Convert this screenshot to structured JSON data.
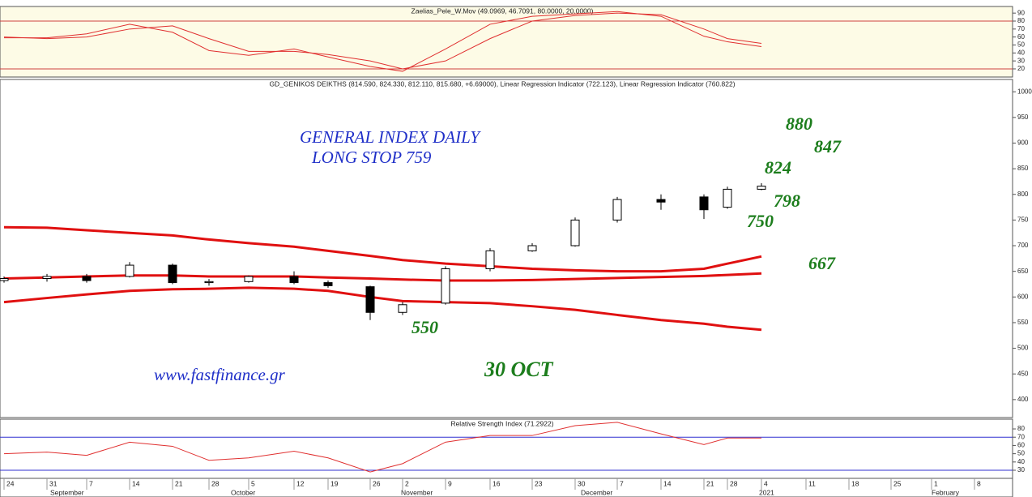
{
  "chart_data": [
    {
      "type": "line",
      "title": "Zaelias_Pele_W.Mov (49.0969, 46.7091, 80.0000, 20.0000)",
      "ylim": [
        9.8,
        98.3
      ],
      "yticks": [
        20,
        30,
        40,
        50,
        60,
        70,
        80,
        90
      ],
      "hlines": [
        80,
        20
      ],
      "background": "#fdfbe6",
      "series": [
        {
          "color": "#e03030",
          "values": [
            59,
            59,
            64,
            76,
            66,
            43,
            37,
            45,
            35,
            23,
            17,
            45,
            76,
            86,
            89,
            92,
            86,
            61,
            54,
            48,
            null,
            null,
            null,
            null,
            null
          ]
        },
        {
          "color": "#e03030",
          "values": [
            60,
            58,
            60,
            70,
            74,
            58,
            42,
            42,
            38,
            30,
            20,
            30,
            58,
            80,
            87,
            90,
            88,
            70,
            58,
            52,
            null,
            null,
            null,
            null,
            null
          ]
        }
      ]
    },
    {
      "type": "candlestick",
      "title": "GD_GENIKOS DEIKTHS (814.590, 824.330, 812.110, 815.680, +6.69000), Linear Regression Indicator (722.123), Linear Regression Indicator (760.822)",
      "categories": [
        "24",
        "31",
        "7",
        "14",
        "21",
        "28",
        "5",
        "12",
        "19",
        "26",
        "2",
        "9",
        "16",
        "23",
        "30",
        "7",
        "14",
        "21",
        "28",
        "4",
        "11",
        "18",
        "25",
        "1",
        "8"
      ],
      "months": [
        "September",
        "October",
        "November",
        "December",
        "2021",
        "February"
      ],
      "ylim": [
        365,
        1024
      ],
      "yticks": [
        400,
        450,
        500,
        550,
        600,
        650,
        700,
        750,
        800,
        850,
        900,
        950,
        1000
      ],
      "open": [
        632,
        636,
        640,
        640,
        662,
        628,
        630,
        640,
        628,
        620,
        570,
        588,
        655,
        690,
        700,
        750,
        790,
        795,
        775,
        810,
        null,
        null,
        null,
        null,
        null
      ],
      "high": [
        640,
        645,
        645,
        668,
        665,
        635,
        642,
        650,
        632,
        622,
        590,
        660,
        695,
        705,
        755,
        795,
        800,
        800,
        815,
        822,
        null,
        null,
        null,
        null,
        null
      ],
      "low": [
        628,
        630,
        628,
        638,
        625,
        622,
        628,
        625,
        618,
        555,
        565,
        585,
        650,
        688,
        698,
        745,
        770,
        752,
        772,
        808,
        null,
        null,
        null,
        null,
        null
      ],
      "close": [
        636,
        640,
        632,
        662,
        628,
        630,
        640,
        628,
        622,
        570,
        585,
        655,
        690,
        700,
        750,
        790,
        785,
        770,
        810,
        816,
        null,
        null,
        null,
        null,
        null
      ],
      "series": [
        {
          "color": "#e01010",
          "values": [
            736,
            735,
            730,
            725,
            720,
            712,
            705,
            698,
            690,
            680,
            672,
            665,
            660,
            655,
            652,
            650,
            650,
            655,
            665,
            679,
            null,
            null,
            null,
            null,
            null
          ]
        },
        {
          "color": "#e01010",
          "values": [
            636,
            638,
            640,
            642,
            642,
            640,
            640,
            640,
            638,
            636,
            634,
            632,
            632,
            633,
            635,
            637,
            639,
            641,
            643,
            646,
            null,
            null,
            null,
            null,
            null
          ]
        },
        {
          "color": "#e01010",
          "values": [
            590,
            598,
            605,
            612,
            615,
            616,
            618,
            616,
            612,
            600,
            592,
            590,
            588,
            582,
            575,
            565,
            555,
            548,
            542,
            536,
            null,
            null,
            null,
            null,
            null
          ]
        }
      ],
      "annotations": [
        "GENERAL INDEX DAILY",
        "LONG STOP 759",
        "880",
        "847",
        "824",
        "798",
        "750",
        "667",
        "550",
        "www.fastfinance.gr",
        "30 OCT"
      ]
    },
    {
      "type": "line",
      "title": "Relative Strength Index (71.2922)",
      "ylim": [
        20.2,
        91.8
      ],
      "yticks": [
        30,
        40,
        50,
        60,
        70,
        80
      ],
      "hlines": [
        70,
        30
      ],
      "series": [
        {
          "color": "#e03030",
          "values": [
            50,
            52,
            48,
            64,
            59,
            42,
            45,
            53,
            45,
            28,
            38,
            64,
            72,
            72,
            84,
            88,
            74,
            61,
            69,
            69,
            null,
            null,
            null,
            null,
            null
          ]
        }
      ]
    }
  ]
}
